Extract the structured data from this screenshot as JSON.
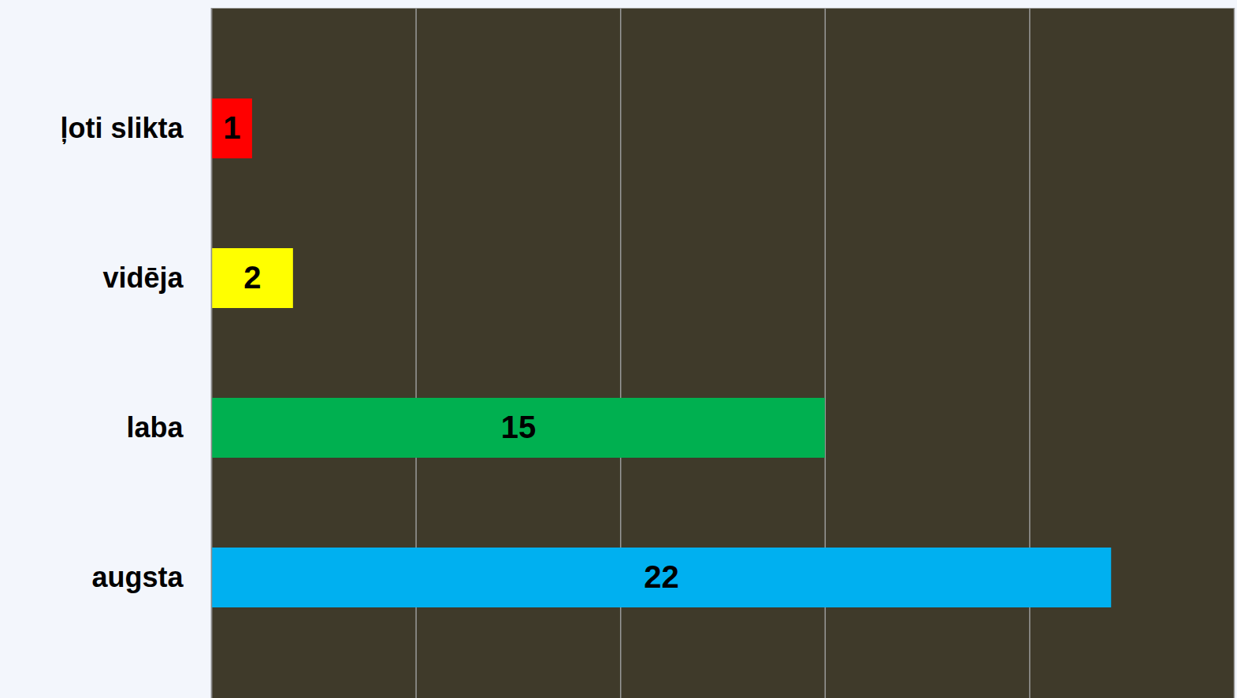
{
  "chart_data": {
    "type": "bar",
    "orientation": "horizontal",
    "categories": [
      "ļoti slikta",
      "vidēja",
      "laba",
      "augsta"
    ],
    "values": [
      1,
      2,
      15,
      22
    ],
    "colors": [
      "#ff0000",
      "#ffff00",
      "#00b050",
      "#00b0f0"
    ],
    "xlim": [
      0,
      25
    ],
    "xticks": [
      0,
      5,
      10,
      15,
      20,
      25
    ],
    "grid": true,
    "data_labels": true,
    "tick_labels": "y"
  }
}
